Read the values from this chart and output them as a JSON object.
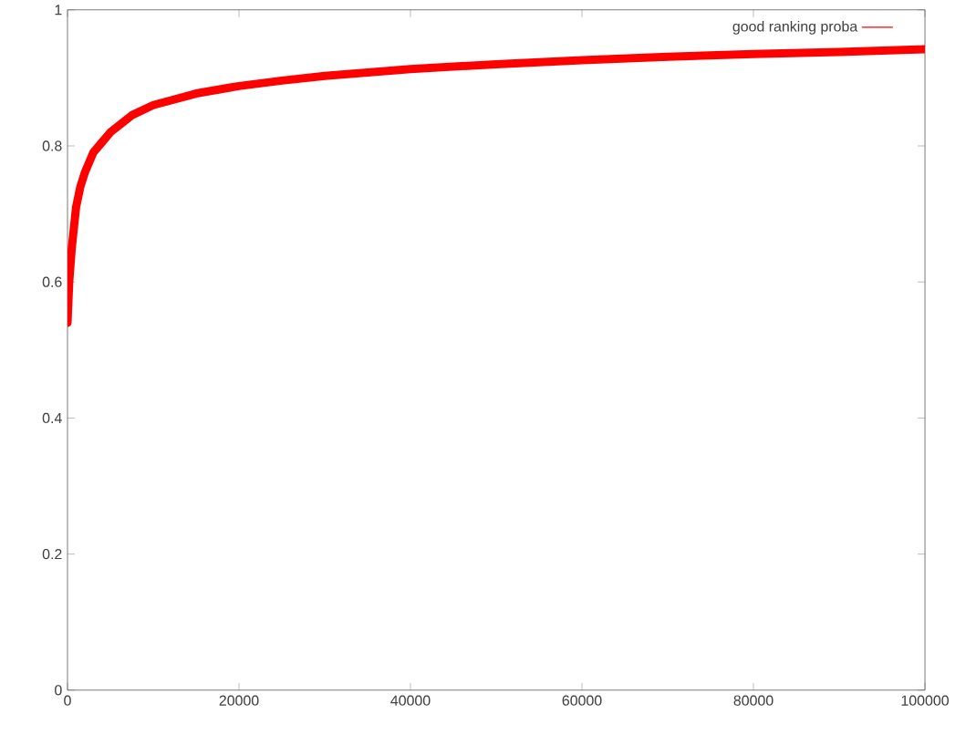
{
  "chart_data": {
    "type": "line",
    "x": [
      0,
      200,
      500,
      1000,
      1500,
      2000,
      3000,
      4000,
      5000,
      7500,
      10000,
      15000,
      20000,
      25000,
      30000,
      40000,
      50000,
      60000,
      70000,
      80000,
      90000,
      100000
    ],
    "series": [
      {
        "name": "good ranking proba",
        "color": "#ff0000",
        "values": [
          0.54,
          0.6,
          0.65,
          0.71,
          0.74,
          0.76,
          0.79,
          0.805,
          0.82,
          0.845,
          0.86,
          0.877,
          0.888,
          0.896,
          0.903,
          0.913,
          0.92,
          0.926,
          0.931,
          0.935,
          0.938,
          0.942
        ]
      }
    ],
    "xlim": [
      0,
      100000
    ],
    "ylim": [
      0,
      1
    ],
    "xticks": [
      0,
      20000,
      40000,
      60000,
      80000,
      100000
    ],
    "yticks": [
      0,
      0.2,
      0.4,
      0.6,
      0.8,
      1
    ],
    "grid": false,
    "legend": "top right",
    "marker": "none",
    "line_style": "solid"
  }
}
